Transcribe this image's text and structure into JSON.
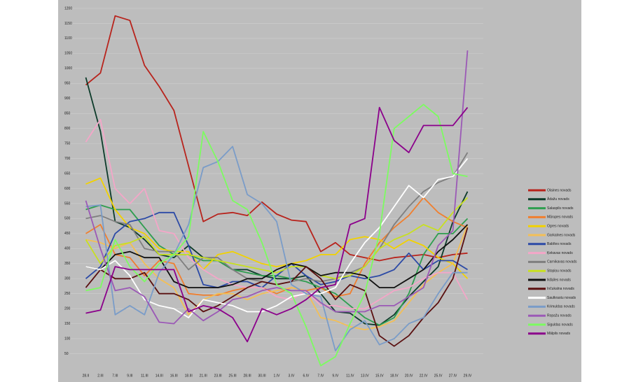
{
  "chart_data": {
    "type": "line",
    "categories": [
      "28.II",
      "2.III",
      "7.III",
      "9.III",
      "11.III",
      "14.III",
      "16.III",
      "18.III",
      "21.III",
      "23.III",
      "25.III",
      "28.III",
      "30.III",
      "1.IV",
      "3.IV",
      "6.IV",
      "7.IV",
      "9.IV",
      "11.IV",
      "13.IV",
      "15.IV",
      "18.IV",
      "20.IV",
      "22.IV",
      "25.IV",
      "27.IV",
      "29.IV"
    ],
    "ylim": [
      0,
      1200
    ],
    "yticks": [
      50,
      100,
      150,
      200,
      250,
      300,
      350,
      400,
      450,
      500,
      550,
      600,
      650,
      700,
      750,
      800,
      850,
      900,
      950,
      1000,
      1050,
      1100,
      1150,
      1200
    ],
    "grid": true,
    "series": [
      {
        "name": "Olaines novads",
        "color": "#b8231c",
        "values": [
          945,
          985,
          1175,
          1160,
          1010,
          940,
          860,
          675,
          490,
          515,
          520,
          510,
          555,
          515,
          495,
          490,
          390,
          420,
          380,
          370,
          360,
          370,
          375,
          380,
          370,
          380,
          385
        ]
      },
      {
        "name": "Ādažu novads",
        "color": "#0d3b2a",
        "values": [
          970,
          790,
          490,
          470,
          430,
          380,
          370,
          410,
          370,
          360,
          330,
          330,
          310,
          300,
          300,
          310,
          250,
          190,
          185,
          150,
          145,
          180,
          240,
          290,
          340,
          490,
          590
        ]
      },
      {
        "name": "Salaspils novads",
        "color": "#2e9e4f",
        "values": [
          530,
          545,
          530,
          530,
          470,
          410,
          380,
          380,
          360,
          360,
          330,
          320,
          310,
          310,
          300,
          290,
          270,
          250,
          210,
          170,
          145,
          170,
          250,
          380,
          450,
          450,
          500
        ]
      },
      {
        "name": "Mārupes novads",
        "color": "#f07f2f",
        "values": [
          450,
          480,
          380,
          370,
          310,
          360,
          350,
          250,
          245,
          245,
          260,
          270,
          270,
          250,
          270,
          260,
          270,
          240,
          250,
          350,
          420,
          470,
          510,
          570,
          520,
          490,
          470
        ]
      },
      {
        "name": "Ogres novads",
        "color": "#f2d200",
        "values": [
          615,
          635,
          530,
          470,
          450,
          400,
          390,
          390,
          330,
          380,
          390,
          370,
          350,
          340,
          350,
          360,
          380,
          380,
          430,
          440,
          430,
          400,
          430,
          410,
          370,
          350,
          300
        ]
      },
      {
        "name": "Garkalnes novads",
        "color": "#f3bf56",
        "values": [
          430,
          420,
          400,
          420,
          350,
          300,
          270,
          180,
          230,
          250,
          250,
          230,
          250,
          260,
          270,
          260,
          170,
          160,
          140,
          130,
          140,
          160,
          220,
          280,
          320,
          350,
          480
        ]
      },
      {
        "name": "Babītes novads",
        "color": "#2c4aa6",
        "values": [
          300,
          340,
          450,
          490,
          500,
          520,
          520,
          410,
          280,
          270,
          290,
          290,
          270,
          310,
          350,
          310,
          280,
          290,
          310,
          300,
          310,
          330,
          385,
          330,
          360,
          360,
          330
        ]
      },
      {
        "name": "Ķekavas novads",
        "color": "#f4a6c8",
        "values": [
          755,
          830,
          600,
          550,
          600,
          460,
          450,
          370,
          330,
          300,
          280,
          270,
          270,
          240,
          230,
          260,
          210,
          210,
          200,
          200,
          230,
          260,
          270,
          300,
          320,
          320,
          230
        ]
      },
      {
        "name": "Carnikavas novads",
        "color": "#7f7f7f",
        "values": [
          500,
          510,
          490,
          480,
          400,
          390,
          390,
          330,
          370,
          370,
          330,
          300,
          290,
          280,
          290,
          300,
          290,
          300,
          320,
          340,
          400,
          480,
          540,
          590,
          620,
          640,
          720
        ]
      },
      {
        "name": "Stopiņu novads",
        "color": "#c8e020",
        "values": [
          430,
          350,
          410,
          420,
          440,
          380,
          380,
          380,
          370,
          360,
          350,
          340,
          330,
          320,
          340,
          340,
          310,
          300,
          310,
          340,
          400,
          430,
          450,
          480,
          460,
          520,
          570
        ]
      },
      {
        "name": "Ikšķiles novads",
        "color": "#111111",
        "values": [
          340,
          330,
          380,
          390,
          370,
          370,
          290,
          270,
          270,
          270,
          280,
          300,
          300,
          330,
          350,
          340,
          310,
          320,
          320,
          310,
          270,
          270,
          300,
          330,
          390,
          430,
          480
        ]
      },
      {
        "name": "Inčukalna novads",
        "color": "#5a1010",
        "values": [
          270,
          330,
          300,
          300,
          320,
          250,
          250,
          230,
          190,
          210,
          240,
          270,
          290,
          280,
          290,
          340,
          300,
          230,
          280,
          260,
          110,
          75,
          110,
          170,
          220,
          300,
          470
        ]
      },
      {
        "name": "Saulkrastu novads",
        "color": "#ffffff",
        "values": [
          340,
          330,
          360,
          310,
          230,
          210,
          200,
          170,
          230,
          220,
          210,
          190,
          190,
          210,
          240,
          250,
          250,
          270,
          350,
          420,
          470,
          540,
          610,
          570,
          630,
          640,
          700
        ]
      },
      {
        "name": "Krimuldas novads",
        "color": "#7a9cc8",
        "values": [
          540,
          545,
          180,
          210,
          180,
          320,
          380,
          480,
          670,
          690,
          740,
          580,
          550,
          490,
          280,
          250,
          240,
          60,
          130,
          160,
          80,
          100,
          150,
          170,
          250,
          320,
          320
        ]
      },
      {
        "name": "Ropažu novads",
        "color": "#9b59b6",
        "values": [
          560,
          400,
          260,
          270,
          240,
          155,
          150,
          200,
          160,
          190,
          230,
          240,
          260,
          270,
          260,
          260,
          220,
          190,
          190,
          190,
          210,
          210,
          240,
          270,
          410,
          460,
          1060
        ]
      },
      {
        "name": "Siguldas novads",
        "color": "#7cfc60",
        "values": [
          260,
          270,
          430,
          340,
          290,
          350,
          380,
          440,
          790,
          690,
          560,
          530,
          420,
          280,
          250,
          140,
          10,
          40,
          150,
          250,
          450,
          800,
          840,
          880,
          840,
          650,
          640
        ]
      },
      {
        "name": "Mālpils novads",
        "color": "#8b008b",
        "values": [
          185,
          195,
          340,
          330,
          330,
          330,
          330,
          190,
          210,
          200,
          170,
          90,
          200,
          180,
          200,
          230,
          270,
          280,
          480,
          500,
          870,
          760,
          720,
          810,
          810,
          810,
          870
        ]
      }
    ]
  }
}
